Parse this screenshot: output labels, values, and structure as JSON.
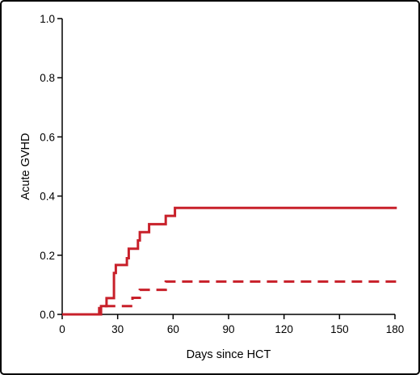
{
  "chart_data": {
    "type": "line",
    "title": "",
    "xlabel": "Days since HCT",
    "ylabel": "Acute GVHD",
    "xlim": [
      0,
      180
    ],
    "ylim": [
      0,
      1.0
    ],
    "x_ticks": [
      0,
      30,
      60,
      90,
      120,
      150,
      180
    ],
    "y_ticks": [
      0.0,
      0.2,
      0.4,
      0.6,
      0.8,
      1.0
    ],
    "x_tick_labels": [
      "0",
      "30",
      "60",
      "90",
      "120",
      "150",
      "180"
    ],
    "y_tick_labels": [
      "0.0",
      "0.2",
      "0.4",
      "0.6",
      "0.8",
      "1.0"
    ],
    "grid": false,
    "legend": "none",
    "step": true,
    "series": [
      {
        "style": "solid",
        "color": "#c8202a",
        "points": [
          [
            0,
            0.0
          ],
          [
            21,
            0.0
          ],
          [
            21,
            0.028
          ],
          [
            24,
            0.028
          ],
          [
            24,
            0.055
          ],
          [
            28,
            0.055
          ],
          [
            28,
            0.14
          ],
          [
            29,
            0.14
          ],
          [
            29,
            0.167
          ],
          [
            35,
            0.167
          ],
          [
            35,
            0.19
          ],
          [
            36,
            0.19
          ],
          [
            36,
            0.222
          ],
          [
            41,
            0.222
          ],
          [
            41,
            0.25
          ],
          [
            42,
            0.25
          ],
          [
            42,
            0.278
          ],
          [
            47,
            0.278
          ],
          [
            47,
            0.305
          ],
          [
            56,
            0.305
          ],
          [
            56,
            0.333
          ],
          [
            61,
            0.333
          ],
          [
            61,
            0.36
          ],
          [
            181,
            0.36
          ]
        ]
      },
      {
        "style": "dashed",
        "color": "#c8202a",
        "points": [
          [
            0,
            0.0
          ],
          [
            20,
            0.0
          ],
          [
            20,
            0.028
          ],
          [
            38,
            0.028
          ],
          [
            38,
            0.056
          ],
          [
            42,
            0.056
          ],
          [
            42,
            0.083
          ],
          [
            56,
            0.083
          ],
          [
            56,
            0.111
          ],
          [
            181,
            0.111
          ]
        ]
      }
    ]
  }
}
